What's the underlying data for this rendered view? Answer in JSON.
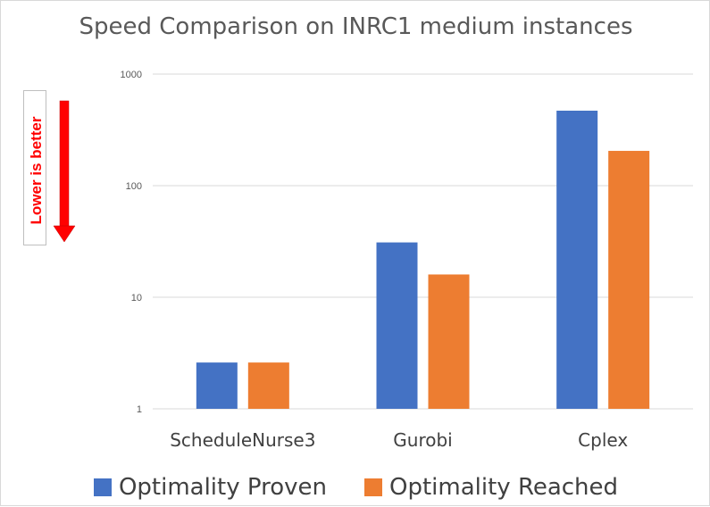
{
  "title": "Speed Comparison on INRC1 medium instances",
  "annotation": "Lower is better",
  "colors": {
    "proven": "#4472C4",
    "reached": "#ED7D31",
    "arrow": "#FF0000",
    "grid": "#D9D9D9"
  },
  "chart_data": {
    "type": "bar",
    "scale": "log",
    "categories": [
      "ScheduleNurse3",
      "Gurobi",
      "Cplex"
    ],
    "series": [
      {
        "name": "Optimality Proven",
        "values": [
          2.6,
          31,
          470
        ]
      },
      {
        "name": "Optimality Reached",
        "values": [
          2.6,
          16,
          205
        ]
      }
    ],
    "yticks": [
      "1",
      "10",
      "100",
      "1000"
    ],
    "ylim": [
      1,
      1000
    ],
    "grid": true,
    "legend": "bottom"
  }
}
